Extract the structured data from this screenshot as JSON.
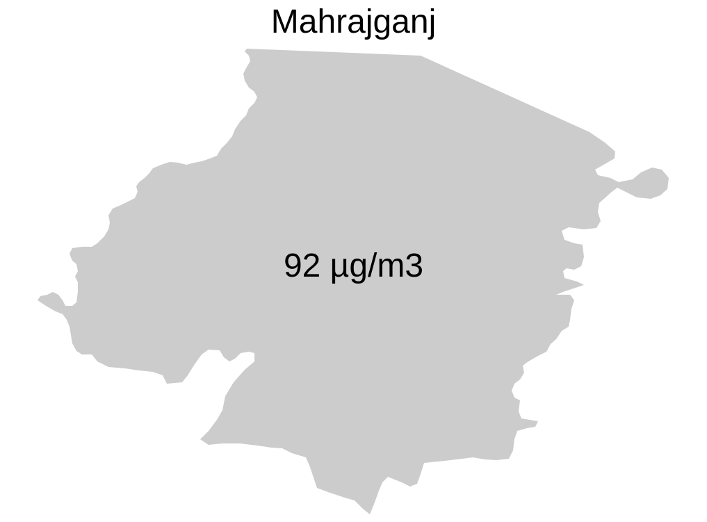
{
  "map": {
    "title": "Mahrajganj",
    "value_label": "92 µg/m3",
    "region_fill": "#cccccc",
    "background": "#ffffff",
    "text_color": "#000000"
  }
}
